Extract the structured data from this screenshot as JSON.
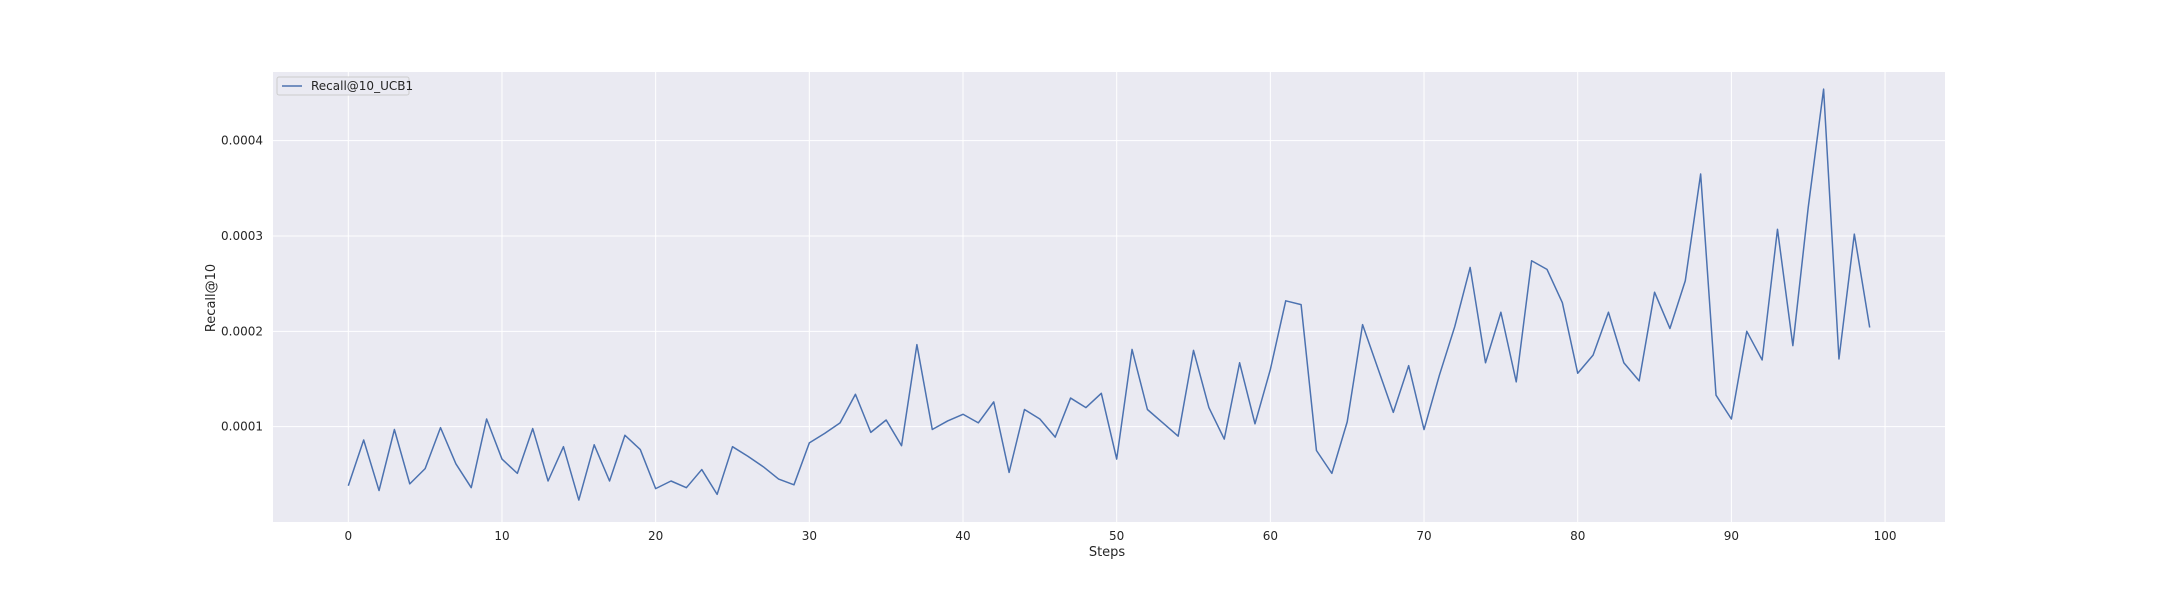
{
  "chart_data": {
    "type": "line",
    "title": "",
    "xlabel": "Steps",
    "ylabel": "Recall@10",
    "xlim": [
      -4.9,
      103.9
    ],
    "ylim": [
      0.0,
      0.000472
    ],
    "x_ticks": [
      0,
      10,
      20,
      30,
      40,
      50,
      60,
      70,
      80,
      90,
      100
    ],
    "y_ticks": [
      0.0001,
      0.0002,
      0.0003,
      0.0004
    ],
    "y_tick_labels": [
      "0.0001",
      "0.0002",
      "0.0003",
      "0.0004"
    ],
    "grid": true,
    "legend_position": "top-left",
    "background_color": "#eaeaf2",
    "grid_color": "#ffffff",
    "series": [
      {
        "name": "Recall@10_UCB1",
        "color": "#4c72b0",
        "x": [
          0,
          1,
          2,
          3,
          4,
          5,
          6,
          7,
          8,
          9,
          10,
          11,
          12,
          13,
          14,
          15,
          16,
          17,
          18,
          19,
          20,
          21,
          22,
          23,
          24,
          25,
          26,
          27,
          28,
          29,
          30,
          31,
          32,
          33,
          34,
          35,
          36,
          37,
          38,
          39,
          40,
          41,
          42,
          43,
          44,
          45,
          46,
          47,
          48,
          49,
          50,
          51,
          52,
          53,
          54,
          55,
          56,
          57,
          58,
          59,
          60,
          61,
          62,
          63,
          64,
          65,
          66,
          67,
          68,
          69,
          70,
          71,
          72,
          73,
          74,
          75,
          76,
          77,
          78,
          79,
          80,
          81,
          82,
          83,
          84,
          85,
          86,
          87,
          88,
          89,
          90,
          91,
          92,
          93,
          94,
          95,
          96,
          97,
          98,
          99
        ],
        "values": [
          3.8e-05,
          8.6e-05,
          3.3e-05,
          9.7e-05,
          4e-05,
          5.6e-05,
          9.9e-05,
          6.1e-05,
          3.6e-05,
          0.000108,
          6.6e-05,
          5.1e-05,
          9.8e-05,
          4.3e-05,
          7.9e-05,
          2.3e-05,
          8.1e-05,
          4.3e-05,
          9.1e-05,
          7.6e-05,
          3.5e-05,
          4.3e-05,
          3.6e-05,
          5.5e-05,
          2.9e-05,
          7.9e-05,
          6.9e-05,
          5.8e-05,
          4.5e-05,
          3.9e-05,
          8.3e-05,
          9.3e-05,
          0.000104,
          0.000134,
          9.4e-05,
          0.000107,
          8e-05,
          0.000186,
          9.7e-05,
          0.000106,
          0.000113,
          0.000104,
          0.000126,
          5.2e-05,
          0.000118,
          0.000108,
          8.9e-05,
          0.00013,
          0.00012,
          0.000135,
          6.6e-05,
          0.000181,
          0.000118,
          0.000104,
          9e-05,
          0.00018,
          0.00012,
          8.7e-05,
          0.000167,
          0.000103,
          0.00016,
          0.000232,
          0.000228,
          7.5e-05,
          5.1e-05,
          0.000105,
          0.000207,
          0.000161,
          0.000115,
          0.000164,
          9.7e-05,
          0.000154,
          0.000205,
          0.000267,
          0.000167,
          0.00022,
          0.000147,
          0.000274,
          0.000265,
          0.00023,
          0.000156,
          0.000175,
          0.00022,
          0.000167,
          0.000148,
          0.000241,
          0.000203,
          0.000253,
          0.000365,
          0.000133,
          0.000108,
          0.0002,
          0.00017,
          0.000307,
          0.000185,
          0.00033,
          0.000454,
          0.000171,
          0.000302,
          0.000204
        ]
      }
    ]
  }
}
